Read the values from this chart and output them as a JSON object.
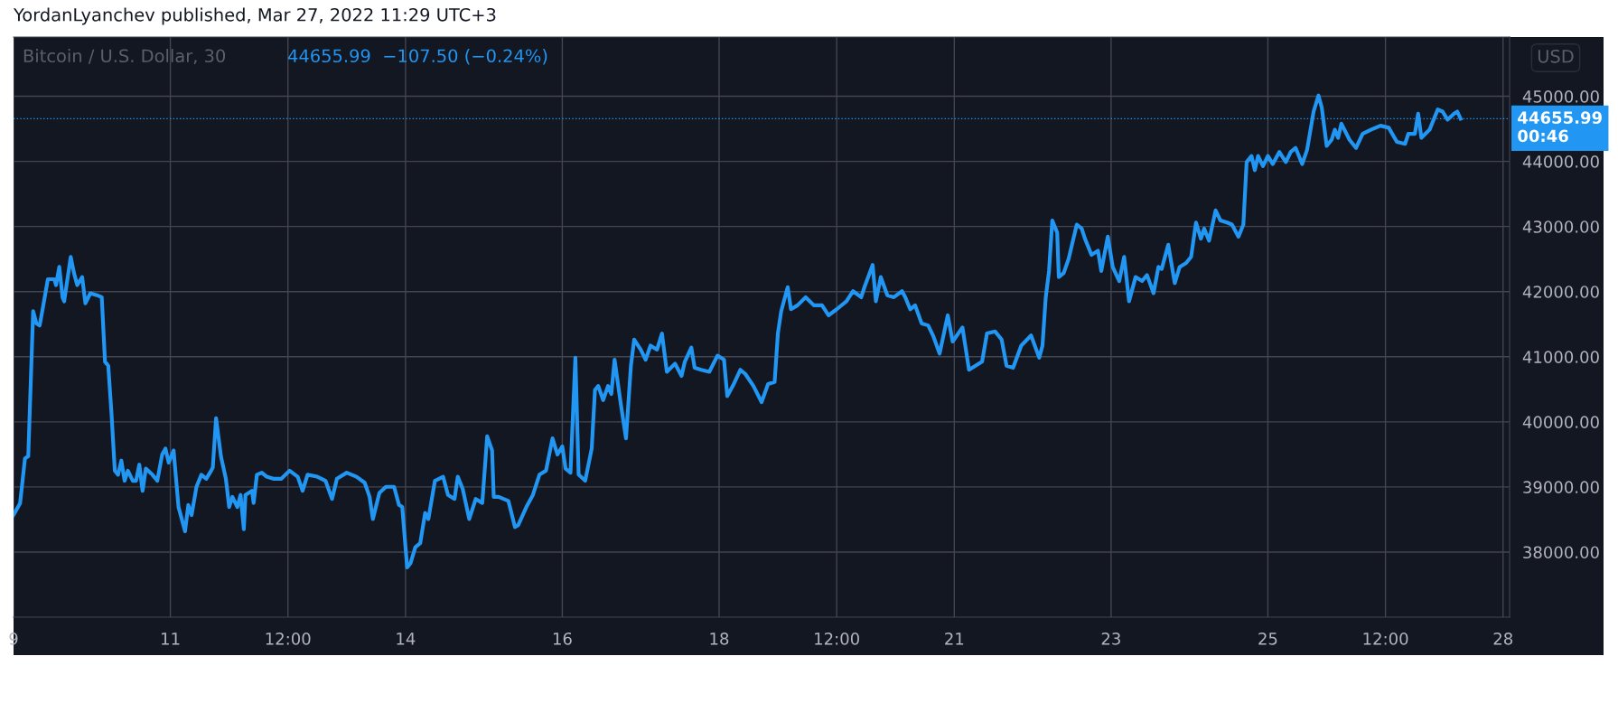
{
  "chart_data": {
    "type": "line",
    "title": "Bitcoin / U.S. Dollar, 30",
    "subtitle": "44655.99  −107.50 (−0.24%)",
    "annotations": [
      "YordanLyanchev published, Mar 27, 2022 11:29 UTC+3",
      "USD"
    ],
    "x": [
      "2022-03-09T00:00",
      "2022-03-09T02:00",
      "2022-03-09T03:30",
      "2022-03-09T04:30",
      "2022-03-09T06:00",
      "2022-03-09T07:00",
      "2022-03-09T08:00",
      "2022-03-09T09:00",
      "2022-03-09T10:30",
      "2022-03-09T12:30",
      "2022-03-09T13:00",
      "2022-03-09T14:00",
      "2022-03-09T15:00",
      "2022-03-09T15:30",
      "2022-03-09T17:30",
      "2022-03-09T18:30",
      "2022-03-09T19:30",
      "2022-03-09T21:00",
      "2022-03-09T22:00",
      "2022-03-09T23:30",
      "2022-03-10T01:30",
      "2022-03-10T03:00",
      "2022-03-10T04:00",
      "2022-03-10T05:00",
      "2022-03-10T06:00",
      "2022-03-10T07:00",
      "2022-03-10T08:00",
      "2022-03-10T09:00",
      "2022-03-10T10:00",
      "2022-03-10T11:00",
      "2022-03-10T12:30",
      "2022-03-10T13:30",
      "2022-03-10T14:30",
      "2022-03-10T15:30",
      "2022-03-10T16:30",
      "2022-03-10T18:30",
      "2022-03-10T20:00",
      "2022-03-10T21:30",
      "2022-03-10T22:30",
      "2022-03-10T23:30",
      "2022-03-11T01:00",
      "2022-03-11T02:30",
      "2022-03-11T04:30",
      "2022-03-11T05:30",
      "2022-03-11T06:30",
      "2022-03-11T08:00",
      "2022-03-11T09:30",
      "2022-03-11T11:00",
      "2022-03-11T12:30",
      "2022-03-11T13:00",
      "2022-03-11T14:00",
      "2022-03-11T15:30",
      "2022-03-11T17:00",
      "2022-03-11T18:00",
      "2022-03-11T19:00",
      "2022-03-11T20:30",
      "2022-03-11T21:30",
      "2022-03-11T22:30",
      "2022-03-11T23:00",
      "2022-03-12T01:00",
      "2022-03-12T01:30",
      "2022-03-12T02:30",
      "2022-03-12T04:00",
      "2022-03-12T05:30",
      "2022-03-12T07:30",
      "2022-03-12T10:00",
      "2022-03-12T12:30",
      "2022-03-12T15:00",
      "2022-03-12T16:30",
      "2022-03-12T18:00",
      "2022-03-12T21:00",
      "2022-03-12T23:30",
      "2022-03-13T01:30",
      "2022-03-13T03:00",
      "2022-03-13T06:00",
      "2022-03-13T09:00",
      "2022-03-13T11:30",
      "2022-03-13T13:00",
      "2022-03-13T14:00",
      "2022-03-13T16:00",
      "2022-03-13T18:00",
      "2022-03-13T20:30",
      "2022-03-13T22:00",
      "2022-03-13T23:00",
      "2022-03-14T00:30",
      "2022-03-14T01:30",
      "2022-03-14T03:00",
      "2022-03-14T04:30",
      "2022-03-14T06:00",
      "2022-03-14T07:00",
      "2022-03-14T09:00",
      "2022-03-14T11:30",
      "2022-03-14T13:00",
      "2022-03-14T15:00",
      "2022-03-14T16:00",
      "2022-03-14T17:30",
      "2022-03-14T19:30",
      "2022-03-14T21:30",
      "2022-03-14T23:30",
      "2022-03-15T01:00",
      "2022-03-15T02:30",
      "2022-03-15T03:00",
      "2022-03-15T04:30",
      "2022-03-15T07:30",
      "2022-03-15T09:30",
      "2022-03-15T10:30",
      "2022-03-15T13:00",
      "2022-03-15T15:00",
      "2022-03-15T17:00",
      "2022-03-15T19:00",
      "2022-03-15T21:00",
      "2022-03-15T22:30",
      "2022-03-16T00:00",
      "2022-03-16T01:00",
      "2022-03-16T02:30",
      "2022-03-16T04:00",
      "2022-03-16T05:00",
      "2022-03-16T07:00",
      "2022-03-16T09:00",
      "2022-03-16T10:00",
      "2022-03-16T11:00",
      "2022-03-16T12:30",
      "2022-03-16T14:00",
      "2022-03-16T15:00",
      "2022-03-16T16:00",
      "2022-03-16T18:00",
      "2022-03-16T19:30",
      "2022-03-16T21:00",
      "2022-03-16T22:00",
      "2022-03-17T00:00",
      "2022-03-17T01:30",
      "2022-03-17T03:00",
      "2022-03-17T05:00",
      "2022-03-17T06:30",
      "2022-03-17T08:00",
      "2022-03-17T10:30",
      "2022-03-17T12:30",
      "2022-03-17T13:30",
      "2022-03-17T15:30",
      "2022-03-17T16:30",
      "2022-03-17T18:30",
      "2022-03-17T21:00",
      "2022-03-17T23:30",
      "2022-03-18T01:30",
      "2022-03-18T02:30",
      "2022-03-18T04:30",
      "2022-03-18T06:30",
      "2022-03-18T08:00",
      "2022-03-18T10:30",
      "2022-03-18T13:00",
      "2022-03-18T15:00",
      "2022-03-18T17:00",
      "2022-03-18T18:00",
      "2022-03-18T19:00",
      "2022-03-18T21:00",
      "2022-03-18T22:00",
      "2022-03-19T00:00",
      "2022-03-19T02:30",
      "2022-03-19T05:00",
      "2022-03-19T07:30",
      "2022-03-19T09:30",
      "2022-03-19T12:00",
      "2022-03-19T15:00",
      "2022-03-19T17:00",
      "2022-03-19T19:30",
      "2022-03-19T20:30",
      "2022-03-19T23:00",
      "2022-03-20T00:00",
      "2022-03-20T01:30",
      "2022-03-20T03:30",
      "2022-03-20T05:30",
      "2022-03-20T08:00",
      "2022-03-20T09:00",
      "2022-03-20T10:30",
      "2022-03-20T12:00",
      "2022-03-20T14:00",
      "2022-03-20T16:00",
      "2022-03-20T17:30",
      "2022-03-20T19:30",
      "2022-03-20T22:00",
      "2022-03-20T23:30",
      "2022-03-21T02:30",
      "2022-03-21T04:30",
      "2022-03-21T06:30",
      "2022-03-21T08:30",
      "2022-03-21T10:00",
      "2022-03-21T12:30",
      "2022-03-21T14:30",
      "2022-03-21T16:00",
      "2022-03-21T18:00",
      "2022-03-21T20:30",
      "2022-03-21T23:30",
      "2022-03-22T02:00",
      "2022-03-22T03:00",
      "2022-03-22T04:00",
      "2022-03-22T05:00",
      "2022-03-22T06:00",
      "2022-03-22T07:30",
      "2022-03-22T08:00",
      "2022-03-22T09:30",
      "2022-03-22T11:00",
      "2022-03-22T13:30",
      "2022-03-22T15:00",
      "2022-03-22T16:00",
      "2022-03-22T18:00",
      "2022-03-22T20:00",
      "2022-03-22T21:00",
      "2022-03-22T23:00",
      "2022-03-23T00:30",
      "2022-03-23T02:30",
      "2022-03-23T04:00",
      "2022-03-23T05:30",
      "2022-03-23T07:30",
      "2022-03-23T09:30",
      "2022-03-23T11:00",
      "2022-03-23T13:00",
      "2022-03-23T14:30",
      "2022-03-23T15:30",
      "2022-03-23T17:30",
      "2022-03-23T19:30",
      "2022-03-23T21:00",
      "2022-03-23T23:00",
      "2022-03-24T00:30",
      "2022-03-24T02:00",
      "2022-03-24T03:30",
      "2022-03-24T04:30",
      "2022-03-24T06:00",
      "2022-03-24T08:00",
      "2022-03-24T09:30",
      "2022-03-24T11:30",
      "2022-03-24T13:00",
      "2022-03-24T15:00",
      "2022-03-24T16:30",
      "2022-03-24T17:30",
      "2022-03-24T19:00",
      "2022-03-24T20:00",
      "2022-03-24T21:00",
      "2022-03-24T22:30",
      "2022-03-25T00:00",
      "2022-03-25T01:30",
      "2022-03-25T03:30",
      "2022-03-25T05:30",
      "2022-03-25T07:00",
      "2022-03-25T08:30",
      "2022-03-25T10:30",
      "2022-03-25T12:00",
      "2022-03-25T14:00",
      "2022-03-25T15:30",
      "2022-03-25T16:30",
      "2022-03-25T18:00",
      "2022-03-25T19:30",
      "2022-03-25T20:30",
      "2022-03-25T21:30",
      "2022-03-25T22:30",
      "2022-03-26T01:00",
      "2022-03-26T03:00",
      "2022-03-26T05:00",
      "2022-03-26T07:30",
      "2022-03-26T10:30",
      "2022-03-26T13:00",
      "2022-03-26T15:30",
      "2022-03-26T18:00",
      "2022-03-26T19:00",
      "2022-03-26T21:00",
      "2022-03-26T22:00",
      "2022-03-26T23:00",
      "2022-03-27T01:30",
      "2022-03-27T04:00",
      "2022-03-27T05:30",
      "2022-03-27T07:00",
      "2022-03-27T09:00",
      "2022-03-27T10:00",
      "2022-03-27T11:00"
    ],
    "series": [
      {
        "color": "#2196f3",
        "values": [
          38570,
          38750,
          39440,
          39470,
          41700,
          41510,
          41480,
          41760,
          42190,
          42190,
          42100,
          42380,
          41910,
          41850,
          42534,
          42286,
          42100,
          42224,
          41820,
          41975,
          41945,
          41914,
          40923,
          40861,
          40117,
          39250,
          39188,
          39405,
          39095,
          39250,
          39095,
          39095,
          39343,
          38940,
          39281,
          39188,
          39095,
          39498,
          39590,
          39374,
          39560,
          38692,
          38320,
          38723,
          38568,
          39002,
          39188,
          39126,
          39250,
          39300,
          40056,
          39467,
          39126,
          38692,
          38847,
          38692,
          38878,
          38352,
          38878,
          38940,
          38754,
          39188,
          39219,
          39157,
          39126,
          39126,
          39250,
          39157,
          38940,
          39188,
          39157,
          39095,
          38816,
          39126,
          39219,
          39157,
          39064,
          38847,
          38507,
          38909,
          39002,
          39002,
          38723,
          38692,
          37763,
          37825,
          38073,
          38135,
          38600,
          38507,
          39095,
          39157,
          38878,
          38816,
          39157,
          38971,
          38507,
          38816,
          38754,
          39777,
          39560,
          38847,
          38847,
          38785,
          38383,
          38414,
          38692,
          38878,
          39188,
          39250,
          39746,
          39498,
          39622,
          39281,
          39219,
          40985,
          39188,
          39095,
          39590,
          40489,
          40551,
          40334,
          40551,
          40427,
          40954,
          40241,
          39746,
          40861,
          41264,
          41109,
          40954,
          41171,
          41109,
          41357,
          40768,
          40892,
          40706,
          40923,
          41140,
          40830,
          40799,
          40768,
          41016,
          40954,
          40396,
          40582,
          40799,
          40737,
          40551,
          40303,
          40582,
          40613,
          41357,
          41698,
          42069,
          41729,
          41790,
          41914,
          41790,
          41790,
          41636,
          41729,
          41852,
          42007,
          41914,
          42069,
          42410,
          41852,
          42224,
          41945,
          41914,
          42007,
          41914,
          41729,
          41790,
          41512,
          41481,
          41326,
          41047,
          41636,
          41233,
          41450,
          40799,
          40861,
          40923,
          41357,
          41388,
          41264,
          40861,
          40830,
          41171,
          41326,
          40985,
          41171,
          41914,
          42317,
          43092,
          42906,
          42224,
          42286,
          42503,
          43030,
          42968,
          42813,
          42565,
          42627,
          42317,
          42844,
          42379,
          42162,
          42534,
          41852,
          42224,
          42162,
          42255,
          41976,
          42379,
          42348,
          42720,
          42131,
          42379,
          42441,
          42534,
          43061,
          42813,
          42968,
          42782,
          43247,
          43092,
          43061,
          43030,
          42844,
          43030,
          43990,
          44083,
          43866,
          44083,
          43928,
          44083,
          43959,
          44145,
          43990,
          44145,
          44207,
          43959,
          44176,
          44765,
          45012,
          44827,
          44238,
          44331,
          44486,
          44362,
          44579,
          44331,
          44207,
          44424,
          44486,
          44548,
          44517,
          44300,
          44269,
          44424,
          44424,
          44734,
          44362,
          44486,
          44796,
          44765,
          44641,
          44734,
          44765,
          44655.99
        ]
      }
    ],
    "xlim": [
      "2022-03-09T00:00",
      "2022-03-28T02:00"
    ],
    "xticks": [
      {
        "value": "2022-03-09T00:00",
        "label": "9"
      },
      {
        "value": "2022-03-11T00:00",
        "label": "11"
      },
      {
        "value": "2022-03-12T12:00",
        "label": "12:00"
      },
      {
        "value": "2022-03-14T00:00",
        "label": "14"
      },
      {
        "value": "2022-03-16T00:00",
        "label": "16"
      },
      {
        "value": "2022-03-18T00:00",
        "label": "18"
      },
      {
        "value": "2022-03-19T12:00",
        "label": "12:00"
      },
      {
        "value": "2022-03-21T00:00",
        "label": "21"
      },
      {
        "value": "2022-03-23T00:00",
        "label": "23"
      },
      {
        "value": "2022-03-25T00:00",
        "label": "25"
      },
      {
        "value": "2022-03-26T12:00",
        "label": "12:00"
      },
      {
        "value": "2022-03-28T00:00",
        "label": "28"
      }
    ],
    "ylim": [
      37000,
      45910
    ],
    "yticks": [
      {
        "value": 38000,
        "label": "38000.00"
      },
      {
        "value": 39000,
        "label": "39000.00"
      },
      {
        "value": 40000,
        "label": "40000.00"
      },
      {
        "value": 41000,
        "label": "41000.00"
      },
      {
        "value": 42000,
        "label": "42000.00"
      },
      {
        "value": 43000,
        "label": "43000.00"
      },
      {
        "value": 44000,
        "label": "44000.00"
      },
      {
        "value": 45000,
        "label": "45000.00"
      }
    ],
    "ref_lines": [
      {
        "axis": "y",
        "value": 44655.99,
        "label": "44655.99\n00:46",
        "color": "#2196f3",
        "line_style": "dotted"
      }
    ],
    "grid": true,
    "legend": false,
    "marker": "none",
    "line_style": "solid"
  }
}
